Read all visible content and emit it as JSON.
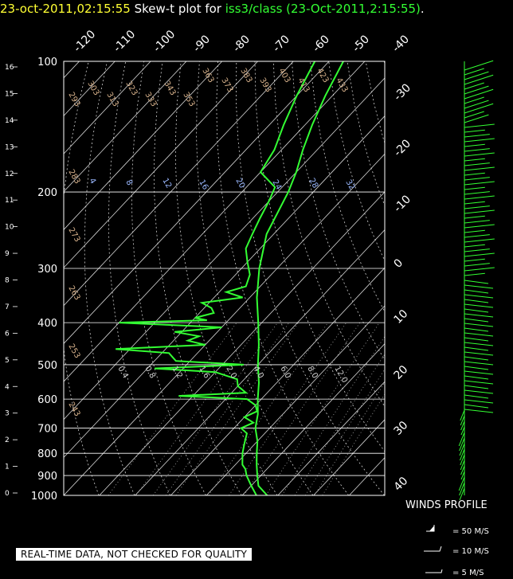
{
  "header": {
    "timestamp": "23-oct-2011,02:15:55",
    "plot_label": "Skew-t plot for",
    "source": "iss3/class (23-Oct-2011,2:15:55)",
    "period": "."
  },
  "colors": {
    "background": "#000000",
    "timestamp": "#ffff33",
    "trace": "#33ff33",
    "isotherm": "#d8d8d8",
    "isobar": "#ffffff",
    "dry_adiabat_label": "#d9b38c",
    "mixing_ratio_label": "#9ab8ff"
  },
  "chart_data": {
    "type": "line",
    "title": "Skew-t plot for iss3/class (23-Oct-2011,2:15:55)",
    "pressure_levels": [
      "100",
      "200",
      "300",
      "400",
      "500",
      "600",
      "700",
      "800",
      "900",
      "1000"
    ],
    "height_km_ticks": [
      "16",
      "15",
      "14",
      "13",
      "12",
      "11",
      "10",
      "9",
      "8",
      "7",
      "6",
      "5",
      "4",
      "3",
      "2",
      "1",
      "0"
    ],
    "temperature_ticks_top": [
      "-120",
      "-110",
      "-100",
      "-90",
      "-80",
      "-70",
      "-60",
      "-50",
      "-40"
    ],
    "temperature_ticks_right": [
      "-30",
      "-20",
      "-10",
      "0",
      "10",
      "20",
      "30",
      "40"
    ],
    "dry_adiabat_labels": [
      "293",
      "303",
      "313",
      "323",
      "333",
      "343",
      "353",
      "363",
      "373",
      "383",
      "393",
      "403",
      "413",
      "423",
      "433",
      "283",
      "273",
      "263",
      "253",
      "243"
    ],
    "mixing_ratio_labels": [
      "4",
      "8",
      "12",
      "16",
      "20",
      "24",
      "28",
      "32"
    ],
    "moist_labels": [
      "0.4",
      "0.8",
      "1.2",
      "1.6",
      "2.0",
      "4.0",
      "6.0",
      "8.0",
      "12.0"
    ],
    "series": [
      {
        "role": "temperature",
        "points": [
          [
            1000,
            17
          ],
          [
            950,
            12
          ],
          [
            900,
            9
          ],
          [
            850,
            6
          ],
          [
            800,
            3
          ],
          [
            750,
            0
          ],
          [
            700,
            -4
          ],
          [
            650,
            -7
          ],
          [
            600,
            -11
          ],
          [
            550,
            -15
          ],
          [
            500,
            -20
          ],
          [
            450,
            -25
          ],
          [
            400,
            -31
          ],
          [
            350,
            -38
          ],
          [
            300,
            -45
          ],
          [
            250,
            -52
          ],
          [
            200,
            -57
          ],
          [
            180,
            -60
          ],
          [
            160,
            -64
          ],
          [
            140,
            -68
          ],
          [
            120,
            -72
          ],
          [
            100,
            -76
          ]
        ]
      },
      {
        "role": "dewpoint",
        "points": [
          [
            1000,
            14
          ],
          [
            950,
            10
          ],
          [
            900,
            6
          ],
          [
            870,
            4
          ],
          [
            850,
            2
          ],
          [
            800,
            -1
          ],
          [
            760,
            -3
          ],
          [
            720,
            -5
          ],
          [
            700,
            -8
          ],
          [
            680,
            -6
          ],
          [
            660,
            -10
          ],
          [
            640,
            -8
          ],
          [
            620,
            -10
          ],
          [
            600,
            -14
          ],
          [
            590,
            -34
          ],
          [
            580,
            -16
          ],
          [
            560,
            -20
          ],
          [
            540,
            -22
          ],
          [
            520,
            -30
          ],
          [
            510,
            -48
          ],
          [
            500,
            -24
          ],
          [
            490,
            -44
          ],
          [
            470,
            -48
          ],
          [
            460,
            -64
          ],
          [
            450,
            -40
          ],
          [
            440,
            -46
          ],
          [
            430,
            -44
          ],
          [
            420,
            -52
          ],
          [
            410,
            -40
          ],
          [
            400,
            -70
          ],
          [
            395,
            -46
          ],
          [
            390,
            -50
          ],
          [
            380,
            -46
          ],
          [
            370,
            -48
          ],
          [
            360,
            -52
          ],
          [
            350,
            -42
          ],
          [
            340,
            -48
          ],
          [
            330,
            -44
          ],
          [
            310,
            -46
          ],
          [
            290,
            -50
          ],
          [
            270,
            -54
          ],
          [
            250,
            -56
          ],
          [
            230,
            -58
          ],
          [
            210,
            -60
          ],
          [
            195,
            -62
          ],
          [
            180,
            -70
          ],
          [
            160,
            -72
          ],
          [
            140,
            -76
          ],
          [
            120,
            -80
          ],
          [
            100,
            -84
          ]
        ]
      }
    ],
    "x_range_at_1000hpa": [
      -40,
      50
    ],
    "grid": true
  },
  "winds": {
    "title": "WINDS PROFILE",
    "legend": [
      "= 50 M/S",
      "= 10 M/S",
      "= 5 M/S"
    ]
  },
  "notice": "REAL-TIME DATA, NOT CHECKED FOR QUALITY"
}
